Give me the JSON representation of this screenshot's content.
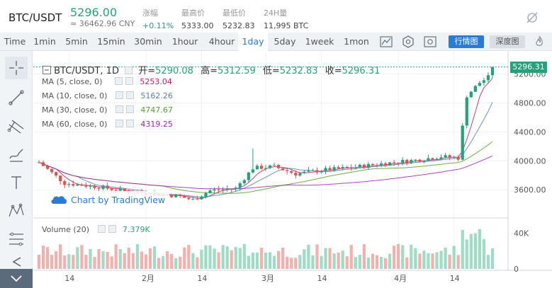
{
  "ticker": {
    "pair": "BTC/USDT",
    "price": "5296.00",
    "price_cny": "≈ 36462.96 CNY",
    "stats": [
      {
        "label": "涨幅",
        "value": "+0.11%",
        "up": true
      },
      {
        "label": "最高价",
        "value": "5333.00",
        "up": false
      },
      {
        "label": "最低价",
        "value": "5232.83",
        "up": false
      },
      {
        "label": "24H量",
        "value": "11,995 BTC",
        "up": false
      }
    ]
  },
  "toolbar": {
    "timeframes": [
      "Time",
      "1min",
      "5min",
      "15min",
      "30min",
      "1hour",
      "4hour",
      "1day",
      "5day",
      "1week",
      "1mon"
    ],
    "active_timeframe": "1day",
    "buttons": [
      "行情图",
      "深度图"
    ],
    "active_button": "行情图"
  },
  "chart": {
    "title": {
      "symbol": "BTC/USDT, 1D",
      "open_label": "开=",
      "open": "5290.08",
      "high_label": "高=",
      "high": "5312.59",
      "low_label": "低=",
      "low": "5232.83",
      "close_label": "收=",
      "close": "5296.31"
    },
    "ma": [
      {
        "label": "MA (5, close, 0)",
        "value": "5253.04",
        "color": "#c2185b"
      },
      {
        "label": "MA (10, close, 0)",
        "value": "5162.26",
        "color": "#5c7bb8"
      },
      {
        "label": "MA (30, close, 0)",
        "value": "4747.67",
        "color": "#58a022"
      },
      {
        "label": "MA (60, close, 0)",
        "value": "4319.25",
        "color": "#9c27b0"
      }
    ],
    "volume_label": "Volume (20)",
    "volume_value": "7.379K",
    "price_tag": "5296.31",
    "watermark": "Chart by TradingView",
    "up_color": "#26a17b",
    "down_color": "#e0524f"
  },
  "chart_data": {
    "type": "candlestick",
    "price_axis_ticks": [
      "5200.00",
      "4800.00",
      "4400.00",
      "4000.00",
      "3600.00"
    ],
    "price_range": [
      3250,
      5420
    ],
    "volume_axis_ticks": [
      "40K",
      "0"
    ],
    "volume_range": [
      0,
      54000
    ],
    "date_axis_ticks": [
      "14",
      "2月",
      "14",
      "3月",
      "14",
      "4月",
      "14"
    ],
    "tick_dates": [
      "2019-01-14",
      "2019-02-01",
      "2019-02-14",
      "2019-03-01",
      "2019-03-14",
      "2019-04-01",
      "2019-04-14"
    ],
    "date_range": [
      "2019-01-07",
      "2019-04-23"
    ],
    "last_close": 5296.31
  }
}
